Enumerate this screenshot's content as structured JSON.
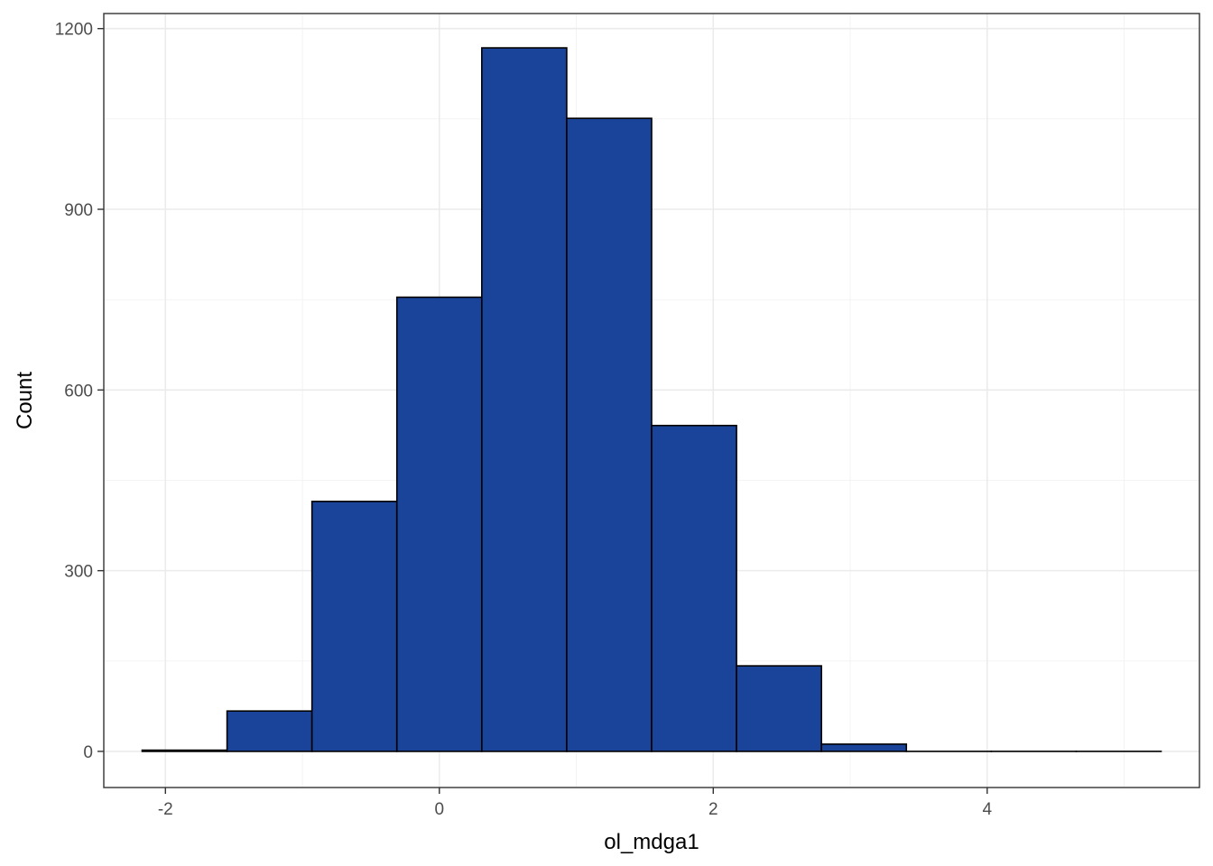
{
  "chart_data": {
    "type": "bar",
    "subtype": "histogram",
    "xlabel": "ol_mdga1",
    "ylabel": "Count",
    "xlim": [
      -2.45,
      5.55
    ],
    "ylim": [
      -60,
      1225
    ],
    "x_ticks": [
      -2,
      0,
      2,
      4
    ],
    "x_tick_labels": [
      "-2",
      "0",
      "2",
      "4"
    ],
    "y_ticks": [
      0,
      300,
      600,
      900,
      1200
    ],
    "y_tick_labels": [
      "0",
      "300",
      "600",
      "900",
      "1200"
    ],
    "grid": true,
    "bins": [
      {
        "x0": -2.17,
        "x1": -1.55,
        "count": 2
      },
      {
        "x0": -1.55,
        "x1": -0.93,
        "count": 67
      },
      {
        "x0": -0.93,
        "x1": -0.31,
        "count": 415
      },
      {
        "x0": -0.31,
        "x1": 0.31,
        "count": 754
      },
      {
        "x0": 0.31,
        "x1": 0.93,
        "count": 1168
      },
      {
        "x0": 0.93,
        "x1": 1.55,
        "count": 1051
      },
      {
        "x0": 1.55,
        "x1": 2.17,
        "count": 541
      },
      {
        "x0": 2.17,
        "x1": 2.79,
        "count": 142
      },
      {
        "x0": 2.79,
        "x1": 3.41,
        "count": 12
      },
      {
        "x0": 3.41,
        "x1": 4.03,
        "count": 0
      },
      {
        "x0": 4.03,
        "x1": 4.65,
        "count": 0
      },
      {
        "x0": 4.65,
        "x1": 5.27,
        "count": 0
      }
    ],
    "colors": {
      "fill": "#1a4499",
      "outline": "#000000"
    }
  }
}
